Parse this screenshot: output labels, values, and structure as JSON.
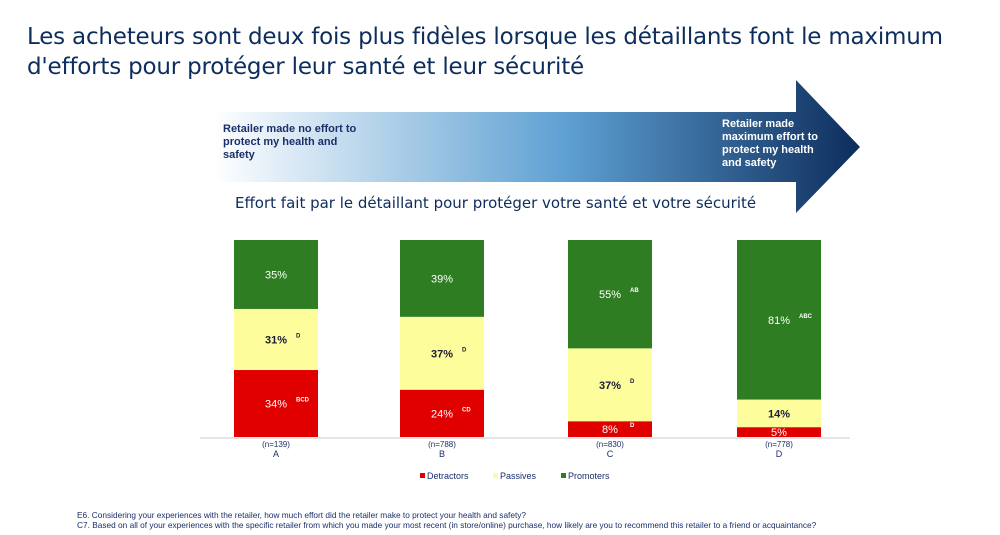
{
  "title": "Les acheteurs sont deux fois plus fidèles lorsque les détaillants font le maximum d'efforts pour protéger leur santé et leur sécurité",
  "arrow": {
    "left_label": "Retailer made no effort to protect my health and safety",
    "right_label": "Retailer made maximum effort to protect my health and safety",
    "colors": [
      "#ffffff",
      "#0d2d5c"
    ]
  },
  "chart_data": {
    "type": "bar",
    "stacked": true,
    "title": "Effort fait par le détaillant pour protéger votre santé et votre sécurité",
    "categories": [
      "A",
      "B",
      "C",
      "D"
    ],
    "sample_sizes": [
      "(n=139)",
      "(n=788)",
      "(n=830)",
      "(n=778)"
    ],
    "ylim": [
      0,
      100
    ],
    "legend_position": "bottom",
    "series": [
      {
        "name": "Detractors",
        "color": "#e00000",
        "values": [
          34,
          24,
          8,
          5
        ],
        "labels": [
          "34%",
          "24%",
          "8%",
          "5%"
        ],
        "sig": [
          "BCD",
          "CD",
          "D",
          ""
        ]
      },
      {
        "name": "Passives",
        "color": "#fdfd9b",
        "values": [
          31,
          37,
          37,
          14
        ],
        "labels": [
          "31%",
          "37%",
          "37%",
          "14%"
        ],
        "sig": [
          "D",
          "D",
          "D",
          ""
        ]
      },
      {
        "name": "Promoters",
        "color": "#2e7d22",
        "values": [
          35,
          39,
          55,
          81
        ],
        "labels": [
          "35%",
          "39%",
          "55%",
          "81%"
        ],
        "sig": [
          "",
          "",
          "AB",
          "ABC"
        ]
      }
    ]
  },
  "footnotes": [
    "E6. Considering your experiences with the retailer, how much effort did the retailer make to protect your health and safety?",
    "C7. Based on all of your experiences with the specific retailer from which you made your most recent (in store/online) purchase, how likely are you to recommend this retailer to a friend or acquaintance?"
  ]
}
